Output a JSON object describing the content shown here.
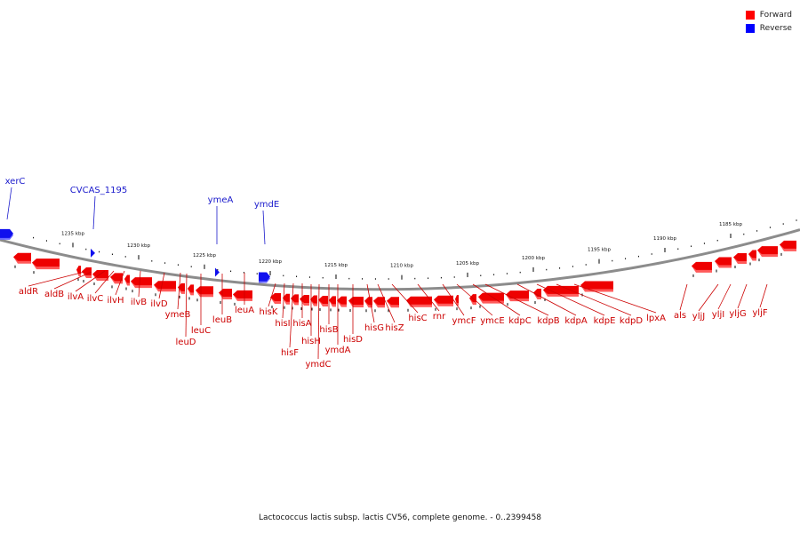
{
  "legend": {
    "items": [
      {
        "label": "Forward",
        "color": "#ff0000"
      },
      {
        "label": "Reverse",
        "color": "#0000ff"
      }
    ]
  },
  "colors": {
    "forward": "#ee0000",
    "forward_highlight": "#ff5a5a",
    "reverse": "#1010ee",
    "reverse_highlight": "#6a6aff",
    "forward_label": "#cc0000",
    "reverse_label": "#1a1acc",
    "backbone": "#8c8c8c",
    "tick": "#000000"
  },
  "map": {
    "caption": "Lactococcus lactis subsp. lactis CV56, complete genome. - 0..2399458",
    "scale_unit": "kbp",
    "scale_ticks": [
      {
        "kbp": 1235,
        "label": "1235 kbp"
      },
      {
        "kbp": 1230,
        "label": "1230 kbp"
      },
      {
        "kbp": 1225,
        "label": "1225 kbp"
      },
      {
        "kbp": 1220,
        "label": "1220 kbp"
      },
      {
        "kbp": 1215,
        "label": "1215 kbp"
      },
      {
        "kbp": 1210,
        "label": "1210 kbp"
      },
      {
        "kbp": 1205,
        "label": "1205 kbp"
      },
      {
        "kbp": 1200,
        "label": "1200 kbp"
      },
      {
        "kbp": 1195,
        "label": "1195 kbp"
      },
      {
        "kbp": 1190,
        "label": "1190 kbp"
      },
      {
        "kbp": 1185,
        "label": "1185 kbp"
      }
    ],
    "reverse_genes": [
      {
        "name": "xerC"
      },
      {
        "name": "CVCAS_1195"
      },
      {
        "name": "ymeA"
      },
      {
        "name": "ymdE"
      }
    ],
    "forward_genes": [
      {
        "name": "aldR"
      },
      {
        "name": "aldB"
      },
      {
        "name": "ilvA"
      },
      {
        "name": "ilvC"
      },
      {
        "name": "ilvH"
      },
      {
        "name": "ilvB"
      },
      {
        "name": "ilvD"
      },
      {
        "name": "ymeB"
      },
      {
        "name": "leuD"
      },
      {
        "name": "leuC"
      },
      {
        "name": "leuB"
      },
      {
        "name": "leuA"
      },
      {
        "name": "hisK"
      },
      {
        "name": "hisI"
      },
      {
        "name": "hisF"
      },
      {
        "name": "hisA"
      },
      {
        "name": "hisH"
      },
      {
        "name": "ymdC"
      },
      {
        "name": "hisB"
      },
      {
        "name": "ymdA"
      },
      {
        "name": "hisD"
      },
      {
        "name": "hisG"
      },
      {
        "name": "hisZ"
      },
      {
        "name": "hisC"
      },
      {
        "name": "rnr"
      },
      {
        "name": "ymcF"
      },
      {
        "name": "ymcE"
      },
      {
        "name": "kdpC"
      },
      {
        "name": "kdpB"
      },
      {
        "name": "kdpA"
      },
      {
        "name": "kdpE"
      },
      {
        "name": "kdpD"
      },
      {
        "name": "lpxA"
      },
      {
        "name": "als"
      },
      {
        "name": "yljJ"
      },
      {
        "name": "yljI"
      },
      {
        "name": "yljG"
      },
      {
        "name": "yljF"
      }
    ]
  }
}
